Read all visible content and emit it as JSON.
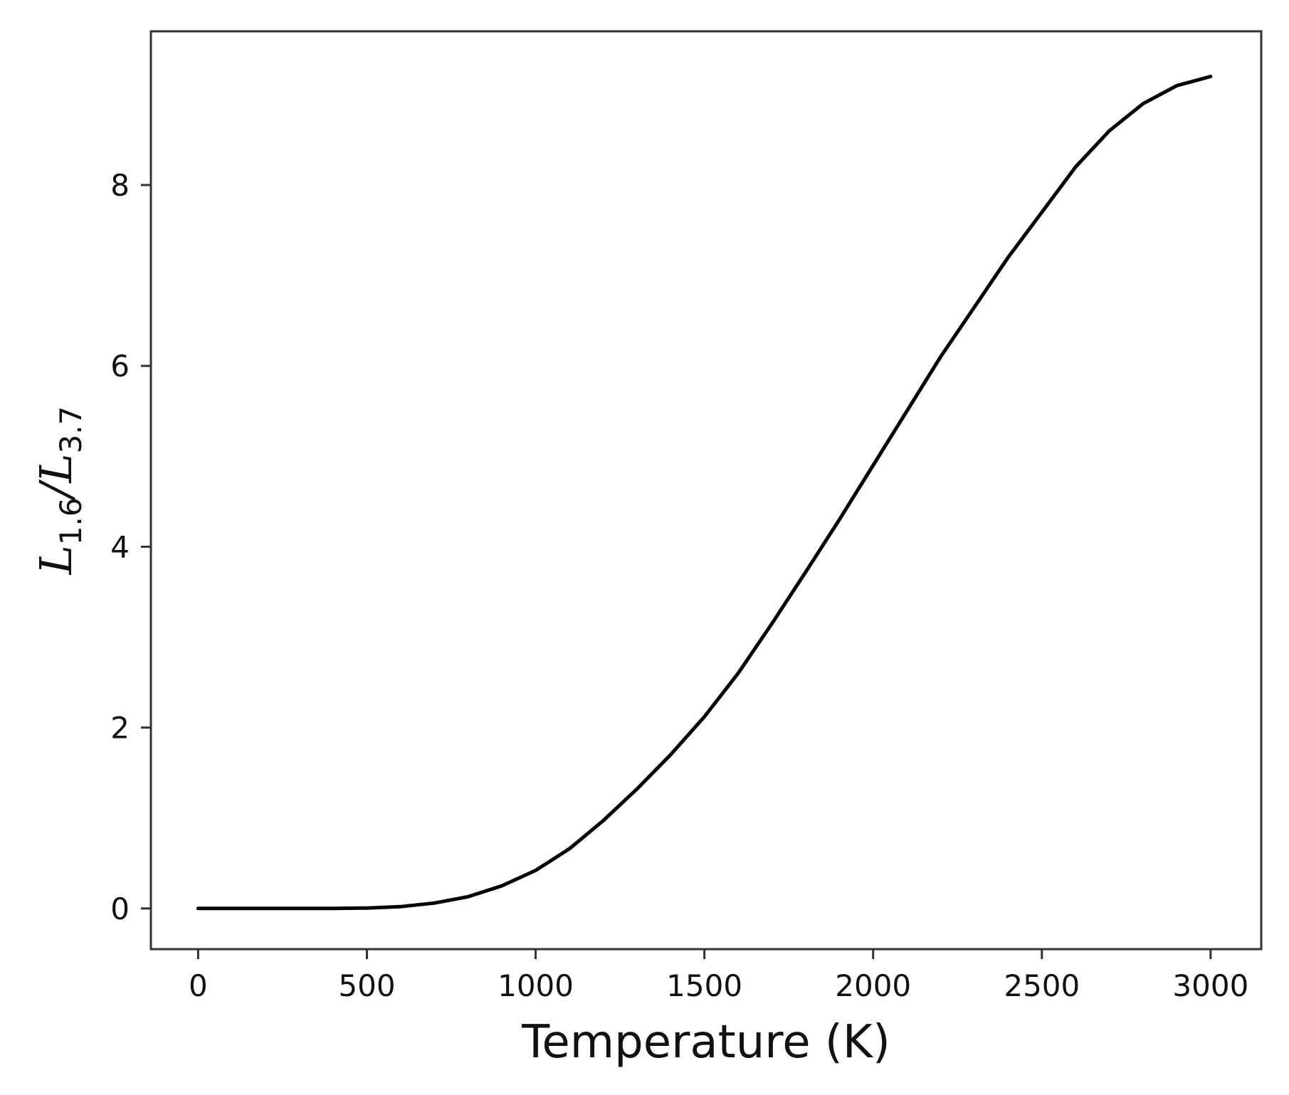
{
  "chart_data": {
    "type": "line",
    "title": "",
    "xlabel": "Temperature (K)",
    "ylabel": {
      "main_1": "L",
      "sub_1": "1.6",
      "slash": "/",
      "main_2": "L",
      "sub_2": "3.7"
    },
    "xlim": [
      -140,
      3150
    ],
    "ylim": [
      -0.45,
      9.7
    ],
    "x_ticks": [
      0,
      500,
      1000,
      1500,
      2000,
      2500,
      3000
    ],
    "x_tick_labels": [
      "0",
      "500",
      "1000",
      "1500",
      "2000",
      "2500",
      "3000"
    ],
    "y_ticks": [
      0,
      2,
      4,
      6,
      8
    ],
    "y_tick_labels": [
      "0",
      "2",
      "4",
      "6",
      "8"
    ],
    "grid": false,
    "legend": "none",
    "series": [
      {
        "color": "#000000",
        "x": [
          0,
          200,
          400,
          500,
          600,
          700,
          800,
          900,
          1000,
          1100,
          1200,
          1300,
          1400,
          1500,
          1600,
          1700,
          1800,
          1900,
          2000,
          2100,
          2200,
          2300,
          2400,
          2500,
          2600,
          2700,
          2800,
          2900,
          3000
        ],
        "y": [
          0,
          0,
          0,
          0.005,
          0.02,
          0.06,
          0.13,
          0.25,
          0.42,
          0.66,
          0.97,
          1.32,
          1.7,
          2.12,
          2.6,
          3.15,
          3.72,
          4.3,
          4.9,
          5.5,
          6.1,
          6.65,
          7.2,
          7.7,
          8.2,
          8.6,
          8.9,
          9.1,
          9.2
        ]
      }
    ]
  }
}
